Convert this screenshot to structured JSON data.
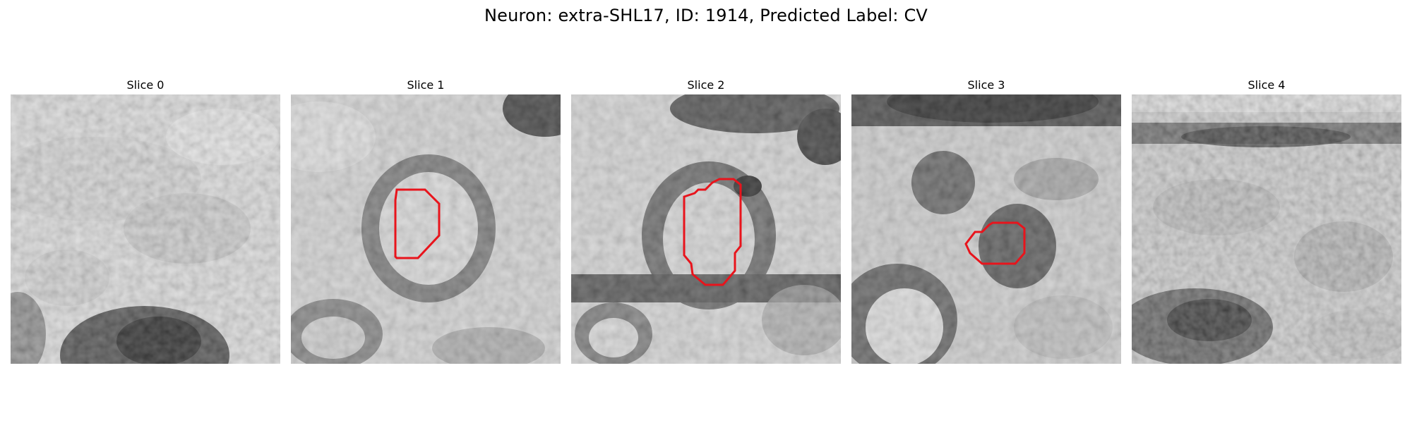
{
  "figure": {
    "title": "Neuron: extra-SHL17, ID: 1914, Predicted Label: CV",
    "outline_color": "#e8141c"
  },
  "panels": [
    {
      "title": "Slice 0",
      "has_outline": false
    },
    {
      "title": "Slice 1",
      "has_outline": true
    },
    {
      "title": "Slice 2",
      "has_outline": true
    },
    {
      "title": "Slice 3",
      "has_outline": true
    },
    {
      "title": "Slice 4",
      "has_outline": false
    }
  ]
}
